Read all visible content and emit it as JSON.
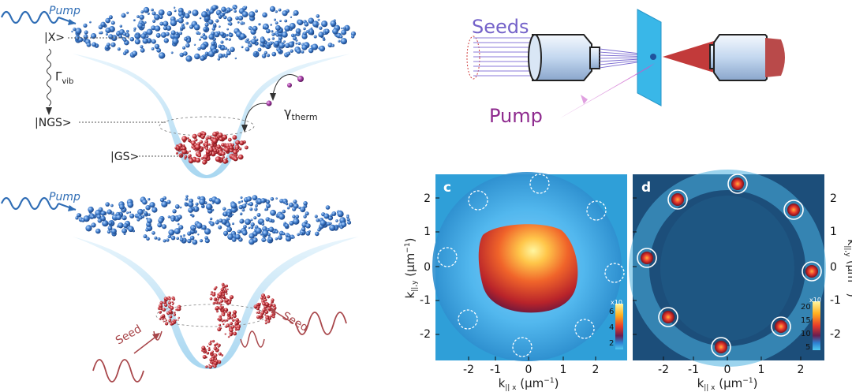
{
  "colors": {
    "wave_blue": "#2f6db5",
    "exciton_blue": "#3a78c8",
    "ground_red": "#c8323a",
    "seed_red": "#a8464a",
    "pump_purple": "#8e2a8e",
    "seeds_violet": "#7462c9",
    "cavity_cyan": "#39b7e8"
  },
  "top_panel": {
    "pump_label": "Pump",
    "level_x": "|X>",
    "level_ngs": "|NGS>",
    "level_gs": "|GS>",
    "gamma_vib": "Γ",
    "gamma_vib_sub": "vib",
    "gamma_therm": "γ",
    "gamma_therm_sub": "therm"
  },
  "bottom_panel": {
    "pump_label": "Pump",
    "seed_left": "Seed",
    "seed_right": "Seed"
  },
  "setup": {
    "seeds_label": "Seeds",
    "pump_label": "Pump"
  },
  "panel_c": {
    "letter": "c",
    "ylabel_main": "k",
    "ylabel_sub": "||,y",
    "ylabel_unit": " (μm",
    "ylabel_exp": "−1",
    "ylabel_close": ")",
    "xlabel_main": "k",
    "xlabel_sub": "|| x",
    "xlabel_unit": " (μm",
    "xlabel_exp": "−1",
    "xlabel_close": ")",
    "x_ticks": [
      "-2",
      "-1",
      "0",
      "1",
      "2"
    ],
    "y_ticks": [
      "2",
      "1",
      "0",
      "-1",
      "-2"
    ],
    "cbar_exp": "x10",
    "cbar_ticks": [
      "6",
      "4",
      "2"
    ]
  },
  "panel_d": {
    "letter": "d",
    "xlabel_main": "k",
    "xlabel_sub": "|| x",
    "xlabel_unit": " (μm",
    "xlabel_exp": "−1",
    "xlabel_close": ")",
    "x_ticks": [
      "-2",
      "-1",
      "0",
      "1",
      "2"
    ],
    "y_ticks_right": [
      "2",
      "1",
      "0",
      "-1",
      "-2"
    ],
    "ylabel_right": "k",
    "ylabel_right_sub": "||,y",
    "ylabel_right_unit": " (μm",
    "ylabel_right_exp": "−1",
    "ylabel_right_close": ")",
    "cbar_exp": "x10",
    "cbar_ticks": [
      "20",
      "15",
      "10",
      "5"
    ]
  }
}
